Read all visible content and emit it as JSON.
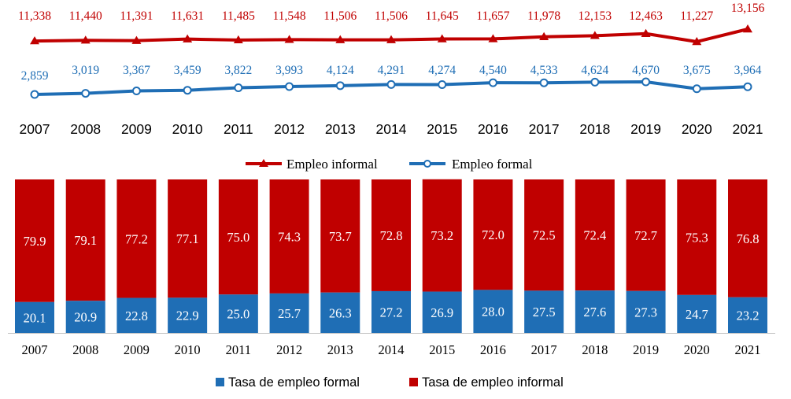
{
  "chart_data": [
    {
      "type": "line",
      "categories": [
        "2007",
        "2008",
        "2009",
        "2010",
        "2011",
        "2012",
        "2013",
        "2014",
        "2015",
        "2016",
        "2017",
        "2018",
        "2019",
        "2020",
        "2021"
      ],
      "series": [
        {
          "name": "Empleo informal",
          "color": "#C00000",
          "marker": "triangle",
          "values": [
            11338,
            11440,
            11391,
            11631,
            11485,
            11548,
            11506,
            11506,
            11645,
            11657,
            11978,
            12153,
            12463,
            11227,
            13156
          ],
          "labels": [
            "11,338",
            "11,440",
            "11,391",
            "11,631",
            "11,485",
            "11,548",
            "11,506",
            "11,506",
            "11,645",
            "11,657",
            "11,978",
            "12,153",
            "12,463",
            "11,227",
            "13,156"
          ]
        },
        {
          "name": "Empleo formal",
          "color": "#1F6EB5",
          "marker": "circle",
          "values": [
            2859,
            3019,
            3367,
            3459,
            3822,
            3993,
            4124,
            4291,
            4274,
            4540,
            4533,
            4624,
            4670,
            3675,
            3964
          ],
          "labels": [
            "2,859",
            "3,019",
            "3,367",
            "3,459",
            "3,822",
            "3,993",
            "4,124",
            "4,291",
            "4,274",
            "4,540",
            "4,533",
            "4,624",
            "4,670",
            "3,675",
            "3,964"
          ]
        }
      ],
      "legend_position": "bottom",
      "grid": false
    },
    {
      "type": "bar",
      "stacked": true,
      "categories": [
        "2007",
        "2008",
        "2009",
        "2010",
        "2011",
        "2012",
        "2013",
        "2014",
        "2015",
        "2016",
        "2017",
        "2018",
        "2019",
        "2020",
        "2021"
      ],
      "ylim": [
        0,
        100
      ],
      "series": [
        {
          "name": "Tasa de empleo formal",
          "color": "#1F6EB5",
          "values": [
            20.1,
            20.9,
            22.8,
            22.9,
            25.0,
            25.7,
            26.3,
            27.2,
            26.9,
            28.0,
            27.5,
            27.6,
            27.3,
            24.7,
            23.2
          ],
          "labels": [
            "20.1",
            "20.9",
            "22.8",
            "22.9",
            "25.0",
            "25.7",
            "26.3",
            "27.2",
            "26.9",
            "28.0",
            "27.5",
            "27.6",
            "27.3",
            "24.7",
            "23.2"
          ]
        },
        {
          "name": "Tasa de empleo informal",
          "color": "#C00000",
          "values": [
            79.9,
            79.1,
            77.2,
            77.1,
            75.0,
            74.3,
            73.7,
            72.8,
            73.2,
            72.0,
            72.5,
            72.4,
            72.7,
            75.3,
            76.8
          ],
          "labels": [
            "79.9",
            "79.1",
            "77.2",
            "77.1",
            "75.0",
            "74.3",
            "73.7",
            "72.8",
            "73.2",
            "72.0",
            "72.5",
            "72.4",
            "72.7",
            "75.3",
            "76.8"
          ]
        }
      ],
      "legend_position": "bottom",
      "grid": false
    }
  ]
}
